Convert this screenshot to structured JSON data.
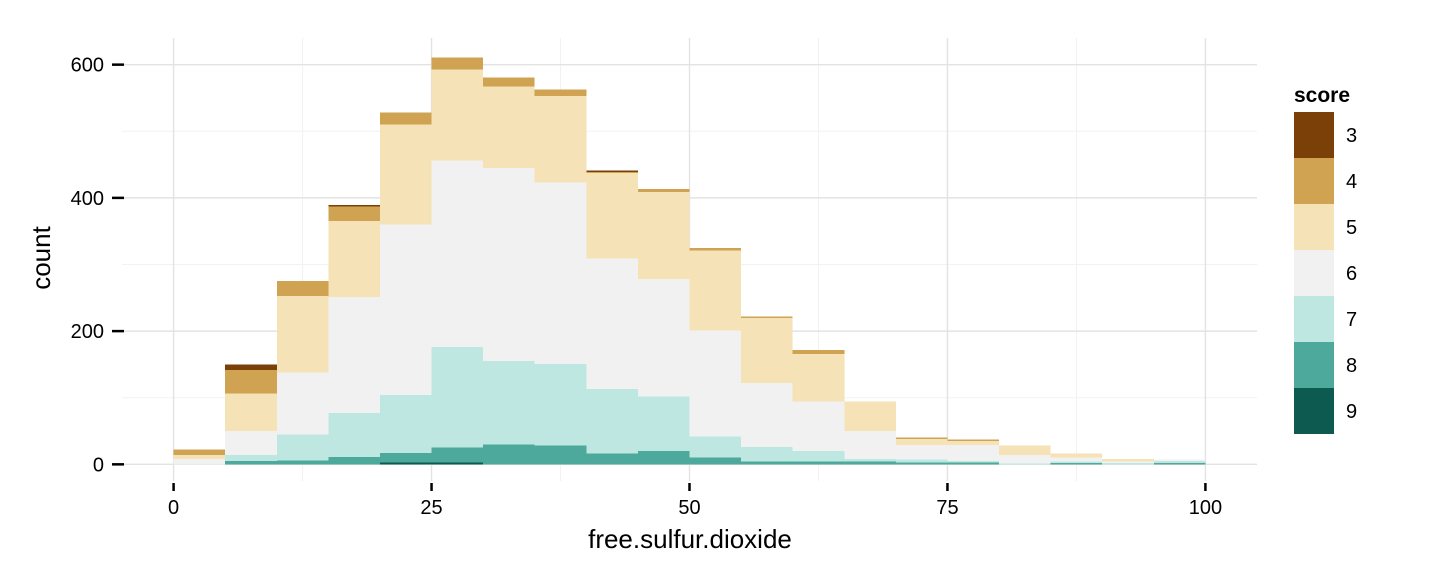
{
  "chart_data": {
    "type": "bar",
    "stacked": true,
    "xlabel": "free.sulfur.dioxide",
    "ylabel": "count",
    "xlim": [
      -5,
      105
    ],
    "ylim": [
      -25,
      640
    ],
    "x_ticks": [
      0,
      25,
      50,
      75,
      100
    ],
    "y_ticks": [
      0,
      200,
      400,
      600
    ],
    "grid": true,
    "legend": {
      "title": "score",
      "position": "right"
    },
    "bin_width": 5,
    "bin_starts": [
      0,
      5,
      10,
      15,
      20,
      25,
      30,
      35,
      40,
      45,
      50,
      55,
      60,
      65,
      70,
      75,
      80,
      85,
      90,
      95
    ],
    "series": [
      {
        "name": "3",
        "color": "#7b3f08",
        "values": [
          0,
          8,
          0,
          2,
          0,
          0,
          0,
          0,
          2,
          0,
          0,
          0,
          0,
          0,
          0,
          0,
          0,
          0,
          0,
          0
        ]
      },
      {
        "name": "4",
        "color": "#cfa352",
        "values": [
          8,
          36,
          22,
          22,
          18,
          18,
          14,
          10,
          2,
          4,
          4,
          2,
          6,
          0,
          2,
          2,
          0,
          0,
          0,
          0
        ]
      },
      {
        "name": "5",
        "color": "#f5e2b6",
        "values": [
          6,
          56,
          115,
          114,
          150,
          137,
          122,
          130,
          128,
          131,
          120,
          98,
          72,
          44,
          9,
          6,
          14,
          6,
          4,
          0
        ]
      },
      {
        "name": "6",
        "color": "#f1f1f1",
        "values": [
          8,
          36,
          93,
          174,
          256,
          280,
          290,
          272,
          196,
          176,
          159,
          96,
          74,
          42,
          22,
          24,
          13,
          6,
          2,
          2
        ]
      },
      {
        "name": "7",
        "color": "#bee7e1",
        "values": [
          0,
          9,
          39,
          66,
          87,
          151,
          125,
          123,
          97,
          82,
          32,
          22,
          16,
          4,
          4,
          2,
          1,
          2,
          2,
          3
        ]
      },
      {
        "name": "8",
        "color": "#4ca99b",
        "values": [
          0,
          5,
          6,
          11,
          14,
          22,
          30,
          28,
          16,
          20,
          10,
          4,
          4,
          4,
          3,
          3,
          0,
          2,
          0,
          2
        ]
      },
      {
        "name": "9",
        "color": "#0c5a50",
        "values": [
          0,
          0,
          0,
          0,
          3,
          3,
          0,
          0,
          0,
          0,
          0,
          0,
          0,
          0,
          0,
          0,
          0,
          0,
          0,
          0
        ]
      }
    ]
  }
}
